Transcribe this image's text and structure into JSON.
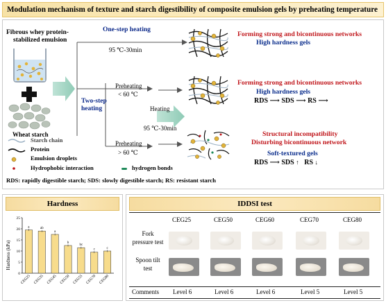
{
  "title": "Modulation mechanism of texture and starch digestibility of composite emulsion gels by preheating temperature",
  "top": {
    "emulsion_label_1": "Fibrous whey protein-",
    "emulsion_label_2": "stabilized emulsion",
    "starch_label": "Wheat starch",
    "one_step": "One-step heating",
    "one_step_cond": "95 ℃-30min",
    "two_step_1": "Two-step",
    "two_step_2": "heating",
    "preheat_1": "Preheating",
    "preheat_1_cond": "< 60 ℃",
    "preheat_2": "Preheating",
    "preheat_2_cond": "> 60 ℃",
    "heating": "Heating",
    "heating_cond": "95 ℃-30min",
    "result1_a": "Forming strong and bicontinuous networks",
    "result1_b": "High hardness gels",
    "result2_a": "Forming strong and bicontinuous networks",
    "result2_b": "High hardness gels",
    "result2_rds": "RDS",
    "result2_sds": "SDS",
    "result2_rs": "RS",
    "result3_a": "Structural incompatibility",
    "result3_b": "Disturbing bicontinuous network",
    "result3_c": "Soft-textured gels",
    "result3_rds": "RDS",
    "result3_sds": "SDS",
    "result3_rs": "RS",
    "legend_starch": "Starch chain",
    "legend_protein": "Protein",
    "legend_droplets": "Emulsion droplets",
    "legend_hydrophobic": "Hydrophobic interaction",
    "legend_hbond": "hydrogen bonds",
    "abbrev": "RDS: rapidly digestible starch; SDS: slowly digestible starch; RS: resistant starch"
  },
  "hardness": {
    "title": "Hardness",
    "ylabel": "Hardness (kPa)"
  },
  "chart_data": {
    "type": "bar",
    "title": "Hardness",
    "ylabel": "Hardness (kPa)",
    "xlabel": "",
    "categories": [
      "CEG25",
      "CEG35",
      "CEG45",
      "CEG50",
      "CEG55",
      "CEG70",
      "CEG80"
    ],
    "values": [
      19.5,
      19.0,
      17.5,
      12.5,
      11.5,
      9.5,
      10.0
    ],
    "letters": [
      "a",
      "ab",
      "a",
      "b",
      "bc",
      "c",
      "c"
    ],
    "ylim": [
      0,
      25
    ],
    "yticks": [
      0,
      5,
      10,
      15,
      20,
      25
    ],
    "bar_color": "#f7dc8c"
  },
  "iddsi": {
    "title": "IDDSI test",
    "columns": [
      "CEG25",
      "CEG50",
      "CEG60",
      "CEG70",
      "CEG80"
    ],
    "row1_label_1": "Fork",
    "row1_label_2": "pressure test",
    "row2_label_1": "Spoon tilt",
    "row2_label_2": "test",
    "row3_label": "Comments",
    "comments": [
      "Level 6",
      "Level 6",
      "Level 6",
      "Level 5",
      "Level 5"
    ]
  }
}
